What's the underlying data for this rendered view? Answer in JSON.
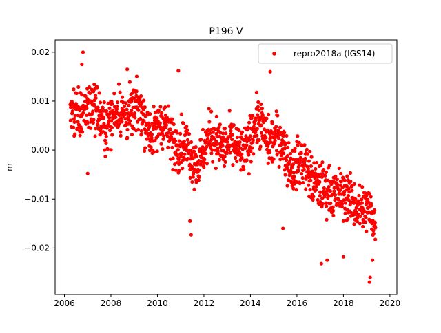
{
  "chart_data": {
    "type": "scatter",
    "title": "P196 V",
    "xlabel": "",
    "ylabel": "m",
    "xlim": [
      2005.6,
      2020.3
    ],
    "ylim": [
      -0.0295,
      0.0225
    ],
    "x_ticks": [
      2006,
      2008,
      2010,
      2012,
      2014,
      2016,
      2018,
      2020
    ],
    "x_tick_labels": [
      "2006",
      "2008",
      "2010",
      "2012",
      "2014",
      "2016",
      "2018",
      "2020"
    ],
    "y_ticks": [
      -0.02,
      -0.01,
      0.0,
      0.01,
      0.02
    ],
    "y_tick_labels": [
      "−0.02",
      "−0.01",
      "0.00",
      "0.01",
      "0.02"
    ],
    "grid": false,
    "legend_position": "top-right",
    "series": [
      {
        "name": "repro2018a (IGS14)",
        "color": "#ff0000",
        "marker": "circle",
        "x_start": 2006.25,
        "x_end": 2019.38,
        "points_per_year": 100,
        "trend": {
          "x": [
            2006.25,
            2006.8,
            2007.5,
            2008.2,
            2008.8,
            2009.4,
            2010.2,
            2010.8,
            2011.4,
            2012.0,
            2012.7,
            2013.3,
            2013.9,
            2014.5,
            2015.0,
            2015.6,
            2016.2,
            2016.8,
            2017.2,
            2017.8,
            2018.3,
            2018.8,
            2019.1,
            2019.38
          ],
          "y": [
            0.006,
            0.009,
            0.007,
            0.006,
            0.009,
            0.006,
            0.004,
            0.003,
            -0.002,
            0.0,
            0.003,
            -0.001,
            0.002,
            0.005,
            0.002,
            -0.001,
            -0.004,
            -0.005,
            -0.01,
            -0.007,
            -0.012,
            -0.01,
            -0.013,
            -0.017
          ]
        },
        "scatter_spread": 0.0035,
        "extremes": [
          {
            "x": 2006.8,
            "y": 0.02
          },
          {
            "x": 2006.75,
            "y": 0.0175
          },
          {
            "x": 2008.7,
            "y": 0.0165
          },
          {
            "x": 2010.9,
            "y": 0.0162
          },
          {
            "x": 2014.85,
            "y": 0.016
          },
          {
            "x": 2011.45,
            "y": -0.0173
          },
          {
            "x": 2011.4,
            "y": -0.0145
          },
          {
            "x": 2017.05,
            "y": -0.0232
          },
          {
            "x": 2017.3,
            "y": -0.0225
          },
          {
            "x": 2018.0,
            "y": -0.0218
          },
          {
            "x": 2019.12,
            "y": -0.027
          },
          {
            "x": 2019.15,
            "y": -0.026
          },
          {
            "x": 2019.25,
            "y": -0.0225
          },
          {
            "x": 2015.4,
            "y": -0.016
          },
          {
            "x": 2007.0,
            "y": -0.0048
          }
        ]
      }
    ]
  }
}
